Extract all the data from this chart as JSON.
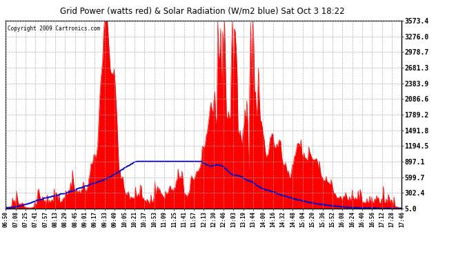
{
  "title": "Grid Power (watts red) & Solar Radiation (W/m2 blue) Sat Oct 3 18:22",
  "copyright": "Copyright 2009 Cartronics.com",
  "bg_color": "#ffffff",
  "plot_bg_color": "#ffffff",
  "grid_color": "#aaaaaa",
  "yticks": [
    5.0,
    302.4,
    599.7,
    897.1,
    1194.5,
    1491.8,
    1789.2,
    2086.6,
    2383.9,
    2681.3,
    2978.7,
    3276.0,
    3573.4
  ],
  "ymin": 5.0,
  "ymax": 3573.4,
  "xtick_labels": [
    "06:50",
    "07:08",
    "07:25",
    "07:41",
    "07:57",
    "08:13",
    "08:29",
    "08:45",
    "09:01",
    "09:17",
    "09:33",
    "09:49",
    "10:05",
    "10:21",
    "10:37",
    "10:53",
    "11:09",
    "11:25",
    "11:41",
    "11:57",
    "12:13",
    "12:30",
    "12:46",
    "13:03",
    "13:19",
    "13:44",
    "14:00",
    "14:16",
    "14:32",
    "14:48",
    "15:04",
    "15:20",
    "15:36",
    "15:52",
    "16:08",
    "16:24",
    "16:40",
    "16:56",
    "17:12",
    "17:28",
    "17:46"
  ],
  "red_color": "#ff0000",
  "blue_color": "#0000cc"
}
